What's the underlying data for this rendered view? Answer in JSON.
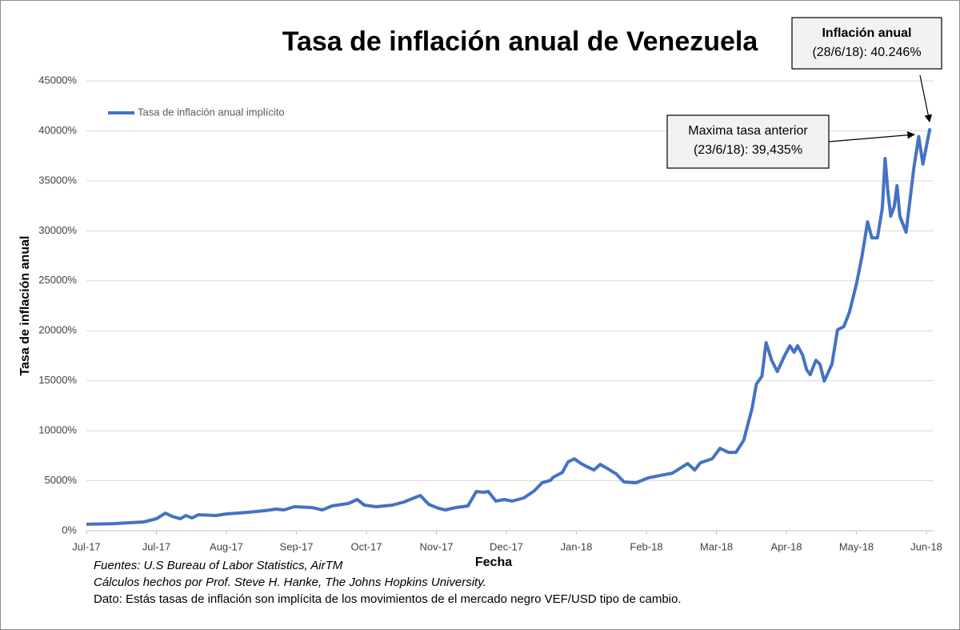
{
  "chart_data": {
    "type": "line",
    "title": "Tasa de inflación anual de Venezuela",
    "x_label": "Fecha",
    "y_label": "Tasa de inflación anual",
    "xlim": [
      0,
      12.1
    ],
    "xticks": [
      {
        "value": 0,
        "label": "Jul-17"
      },
      {
        "value": 1,
        "label": "Jul-17"
      },
      {
        "value": 2,
        "label": "Aug-17"
      },
      {
        "value": 3,
        "label": "Sep-17"
      },
      {
        "value": 4,
        "label": "Oct-17"
      },
      {
        "value": 5,
        "label": "Nov-17"
      },
      {
        "value": 6,
        "label": "Dec-17"
      },
      {
        "value": 7,
        "label": "Jan-18"
      },
      {
        "value": 8,
        "label": "Feb-18"
      },
      {
        "value": 9,
        "label": "Mar-18"
      },
      {
        "value": 10,
        "label": "Apr-18"
      },
      {
        "value": 11,
        "label": "May-18"
      },
      {
        "value": 12,
        "label": "Jun-18"
      }
    ],
    "ylim": [
      0,
      45000
    ],
    "yticks": [
      {
        "value": 0,
        "label": "0%"
      },
      {
        "value": 5000,
        "label": "5000%"
      },
      {
        "value": 10000,
        "label": "10000%"
      },
      {
        "value": 15000,
        "label": "15000%"
      },
      {
        "value": 20000,
        "label": "20000%"
      },
      {
        "value": 25000,
        "label": "25000%"
      },
      {
        "value": 30000,
        "label": "30000%"
      },
      {
        "value": 35000,
        "label": "35000%"
      },
      {
        "value": 40000,
        "label": "40000%"
      },
      {
        "value": 45000,
        "label": "45000%"
      }
    ],
    "grid": true,
    "legend": "top-left",
    "series": [
      {
        "name": "Tasa de inflación anual implícito",
        "color": "#4472c4",
        "x": [
          0,
          0.37,
          0.82,
          1.0,
          1.13,
          1.22,
          1.34,
          1.42,
          1.51,
          1.6,
          1.85,
          2.0,
          2.31,
          2.54,
          2.71,
          2.82,
          2.97,
          3.22,
          3.37,
          3.51,
          3.74,
          3.87,
          3.97,
          4.14,
          4.37,
          4.54,
          4.65,
          4.77,
          4.89,
          5.03,
          5.13,
          5.28,
          5.45,
          5.57,
          5.67,
          5.74,
          5.85,
          5.97,
          6.08,
          6.25,
          6.4,
          6.51,
          6.63,
          6.67,
          6.8,
          6.88,
          6.97,
          7.05,
          7.13,
          7.25,
          7.34,
          7.42,
          7.57,
          7.68,
          7.85,
          8.02,
          8.19,
          8.37,
          8.48,
          8.59,
          8.69,
          8.77,
          8.94,
          9.05,
          9.17,
          9.28,
          9.39,
          9.51,
          9.57,
          9.65,
          9.71,
          9.79,
          9.87,
          9.97,
          10.05,
          10.11,
          10.16,
          10.23,
          10.29,
          10.34,
          10.42,
          10.48,
          10.54,
          10.65,
          10.73,
          10.82,
          10.9,
          11.0,
          11.08,
          11.16,
          11.22,
          11.3,
          11.37,
          11.41,
          11.45,
          11.49,
          11.54,
          11.58,
          11.62,
          11.71,
          11.82,
          11.89,
          11.95,
          12.05
        ],
        "values": [
          650,
          700,
          880,
          1200,
          1760,
          1440,
          1200,
          1520,
          1280,
          1600,
          1520,
          1680,
          1840,
          2000,
          2160,
          2080,
          2400,
          2320,
          2080,
          2480,
          2720,
          3120,
          2560,
          2400,
          2560,
          2880,
          3200,
          3520,
          2640,
          2240,
          2080,
          2320,
          2480,
          3920,
          3840,
          3920,
          2960,
          3120,
          2960,
          3280,
          4000,
          4800,
          5040,
          5360,
          5840,
          6880,
          7200,
          6800,
          6480,
          6080,
          6640,
          6320,
          5680,
          4880,
          4800,
          5280,
          5520,
          5760,
          6240,
          6720,
          6080,
          6800,
          7200,
          8240,
          7840,
          7840,
          9040,
          12250,
          14650,
          15450,
          18820,
          17050,
          15930,
          17450,
          18500,
          17850,
          18500,
          17610,
          16090,
          15610,
          17050,
          16650,
          14970,
          16650,
          20100,
          20420,
          21860,
          24660,
          27460,
          30900,
          29300,
          29300,
          32270,
          37230,
          33870,
          31470,
          32430,
          34510,
          31470,
          29870,
          36270,
          39435,
          36670,
          40246
        ]
      }
    ],
    "annotations": [
      {
        "lines": [
          "Inflación anual",
          "(28/6/18): 40.246%"
        ]
      },
      {
        "lines": [
          "Maxima tasa anterior",
          "(23/6/18): 39,435%"
        ]
      }
    ],
    "footnotes": [
      "Fuentes: U.S Bureau of Labor Statistics, AirTM",
      "Cálculos hechos por Prof. Steve H. Hanke, The Johns Hopkins University.",
      "Dato: Estás tasas de inflación son implícita de los movimientos de el mercado negro VEF/USD tipo de cambio."
    ]
  }
}
